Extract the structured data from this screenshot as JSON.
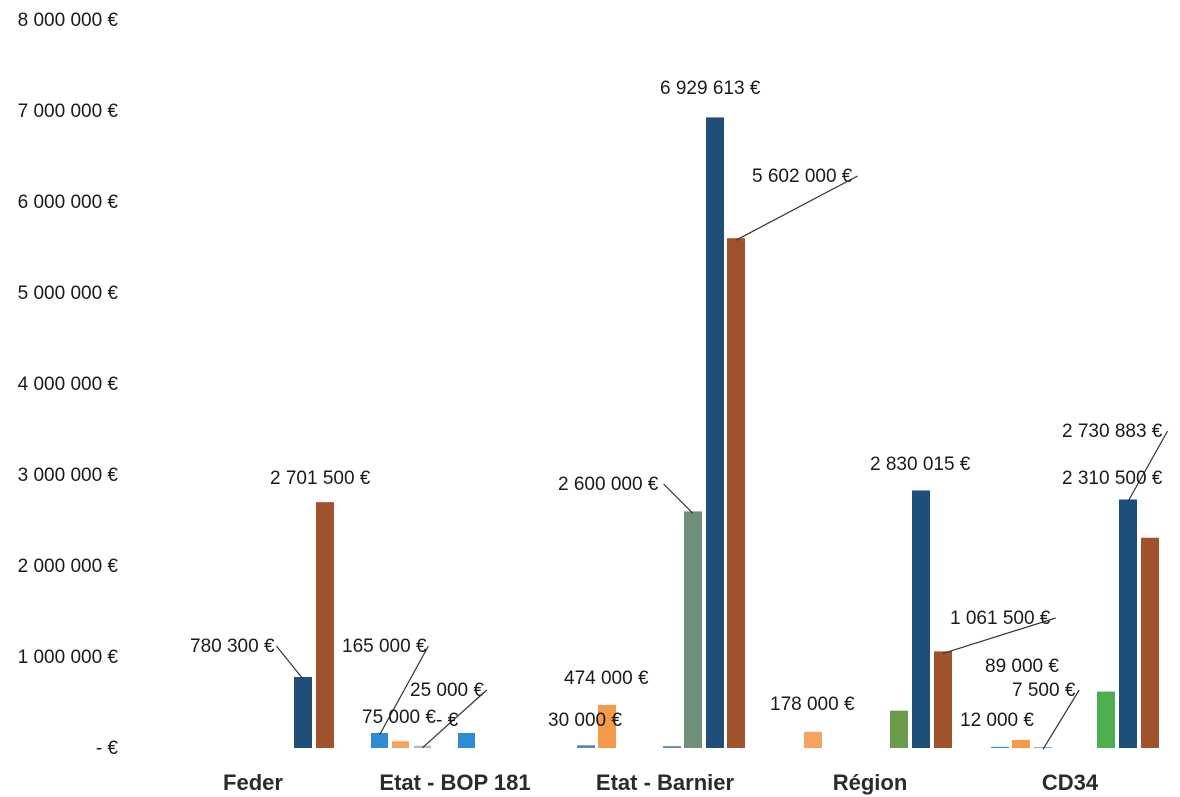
{
  "chart_data": {
    "type": "bar",
    "title": "",
    "xlabel": "",
    "ylabel": "",
    "ylim": [
      0,
      8000000
    ],
    "y_ticks": [
      {
        "value": 0,
        "label": "- €"
      },
      {
        "value": 1000000,
        "label": "1 000 000 €"
      },
      {
        "value": 2000000,
        "label": "2 000 000 €"
      },
      {
        "value": 3000000,
        "label": "3 000 000 €"
      },
      {
        "value": 4000000,
        "label": "4 000 000 €"
      },
      {
        "value": 5000000,
        "label": "5 000 000 €"
      },
      {
        "value": 6000000,
        "label": "6 000 000 €"
      },
      {
        "value": 7000000,
        "label": "7 000 000 €"
      },
      {
        "value": 8000000,
        "label": "8 000 000 €"
      }
    ],
    "grid": false,
    "legend": "none",
    "categories": [
      "Feder",
      "Etat - BOP 181",
      "Etat - Barnier",
      "Région",
      "CD34"
    ],
    "groups": [
      {
        "category": "Feder",
        "bars": [
          {
            "value": 780300,
            "color": "#1f4e79",
            "label": "780 300 €"
          },
          {
            "value": 2701500,
            "color": "#a0522d",
            "label": "2 701 500 €"
          }
        ]
      },
      {
        "category": "Etat - BOP 181",
        "bars": [
          {
            "value": 165000,
            "color": "#2e8bd6",
            "label": "165 000 €"
          },
          {
            "value": 75000,
            "color": "#f4a460",
            "label": "75 000 €"
          },
          {
            "value": 25000,
            "color": "#aab8c8",
            "label": "25 000 €"
          },
          {
            "value": 0,
            "color": "#2e8bd6",
            "label": "- €"
          },
          {
            "value": 165000,
            "color": "#2e8bd6",
            "label": ""
          }
        ]
      },
      {
        "category": "Etat - Barnier",
        "bars": [
          {
            "value": 30000,
            "color": "#5b86b5",
            "label": "30 000 €"
          },
          {
            "value": 474000,
            "color": "#f39a4b",
            "label": "474 000 €"
          },
          {
            "value": 20000,
            "color": "#5b86b5",
            "label": ""
          },
          {
            "value": 2600000,
            "color": "#6f8f7a",
            "label": "2 600 000 €"
          },
          {
            "value": 6929613,
            "color": "#1f4e79",
            "label": "6 929 613 €"
          },
          {
            "value": 5602000,
            "color": "#a0522d",
            "label": "5 602 000 €"
          }
        ]
      },
      {
        "category": "Région",
        "bars": [
          {
            "value": 178000,
            "color": "#f4a460",
            "label": "178 000 €"
          },
          {
            "value": 0,
            "color": "#ffffff",
            "label": ""
          },
          {
            "value": 410000,
            "color": "#6a9a4a",
            "label": ""
          },
          {
            "value": 2830015,
            "color": "#1f4e79",
            "label": "2 830 015 €"
          },
          {
            "value": 1061500,
            "color": "#a0522d",
            "label": "1 061 500 €"
          }
        ]
      },
      {
        "category": "CD34",
        "bars": [
          {
            "value": 12000,
            "color": "#2e8bd6",
            "label": "12 000 €"
          },
          {
            "value": 89000,
            "color": "#f39a4b",
            "label": "89 000 €"
          },
          {
            "value": 7500,
            "color": "#2e8bd6",
            "label": "7 500 €"
          },
          {
            "value": 620000,
            "color": "#4caf50",
            "label": ""
          },
          {
            "value": 2730883,
            "color": "#1f4e79",
            "label": "2 730 883 €"
          },
          {
            "value": 2310500,
            "color": "#a0522d",
            "label": "2 310 500 €"
          }
        ]
      }
    ]
  }
}
